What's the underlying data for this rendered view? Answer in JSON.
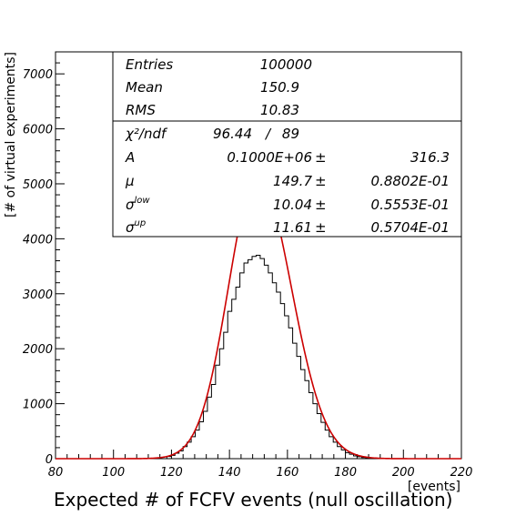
{
  "chart_data": {
    "type": "line",
    "title": "",
    "xlabel": "Expected # of FCFV events (null oscillation)",
    "xunit": "[events]",
    "ylabel": "[# of virtual experiments]",
    "xlim": [
      80,
      220
    ],
    "ylim": [
      0,
      7400
    ],
    "x_ticks": [
      "80",
      "100",
      "120",
      "140",
      "160",
      "180",
      "200",
      "220"
    ],
    "y_ticks": [
      "0",
      "1000",
      "2000",
      "3000",
      "4000",
      "5000",
      "6000",
      "7000"
    ],
    "grid": false,
    "colors": {
      "histogram": "#000000",
      "fit": "#cc0000",
      "frame": "#000000"
    },
    "series": [
      {
        "kind": "histogram",
        "bin_width": 1.4,
        "x": [
          119.1,
          120.5,
          121.9,
          123.3,
          124.7,
          126.1,
          127.5,
          128.9,
          130.3,
          131.7,
          133.1,
          134.5,
          135.9,
          137.3,
          138.7,
          140.1,
          141.5,
          142.9,
          144.3,
          145.7,
          147.1,
          148.5,
          149.9,
          151.3,
          152.7,
          154.1,
          155.5,
          156.9,
          158.3,
          159.7,
          161.1,
          162.5,
          163.9,
          165.3,
          166.7,
          168.1,
          169.5,
          170.9,
          172.3,
          173.7,
          175.1,
          176.5,
          177.9,
          179.3,
          180.7,
          182.1,
          183.5,
          184.9,
          186.3,
          187.7,
          189.1,
          190.5
        ],
        "y": [
          40,
          60,
          100,
          140,
          220,
          300,
          400,
          520,
          670,
          860,
          1120,
          1350,
          1700,
          2000,
          2300,
          2680,
          2900,
          3120,
          3380,
          3560,
          3620,
          3680,
          3700,
          3640,
          3520,
          3380,
          3200,
          3030,
          2820,
          2600,
          2380,
          2100,
          1860,
          1620,
          1420,
          1200,
          1000,
          820,
          660,
          520,
          400,
          300,
          220,
          160,
          110,
          80,
          50,
          35,
          20,
          12,
          8,
          4
        ]
      },
      {
        "kind": "fit",
        "function": "asymmetric gaussian",
        "A": 100000,
        "mu": 149.7,
        "sigma_low": 10.04,
        "sigma_up": 11.61
      }
    ],
    "stats_box": {
      "rows": [
        {
          "label": "Entries",
          "value": "100000"
        },
        {
          "label": "Mean",
          "value": "150.9"
        },
        {
          "label": "RMS",
          "value": "10.83"
        }
      ],
      "fit_rows": [
        {
          "label": "χ²/ndf",
          "value": "96.44",
          "sep": "/",
          "error": "89"
        },
        {
          "label": "A",
          "value": "0.1000E+06",
          "pm": "±",
          "error": "316.3"
        },
        {
          "label": "μ",
          "value": "149.7",
          "pm": "±",
          "error": "0.8802E-01"
        },
        {
          "label": "σ",
          "sup": "low",
          "value": "10.04",
          "pm": "±",
          "error": "0.5553E-01"
        },
        {
          "label": "σ",
          "sup": "up",
          "value": "11.61",
          "pm": "±",
          "error": "0.5704E-01"
        }
      ]
    }
  }
}
